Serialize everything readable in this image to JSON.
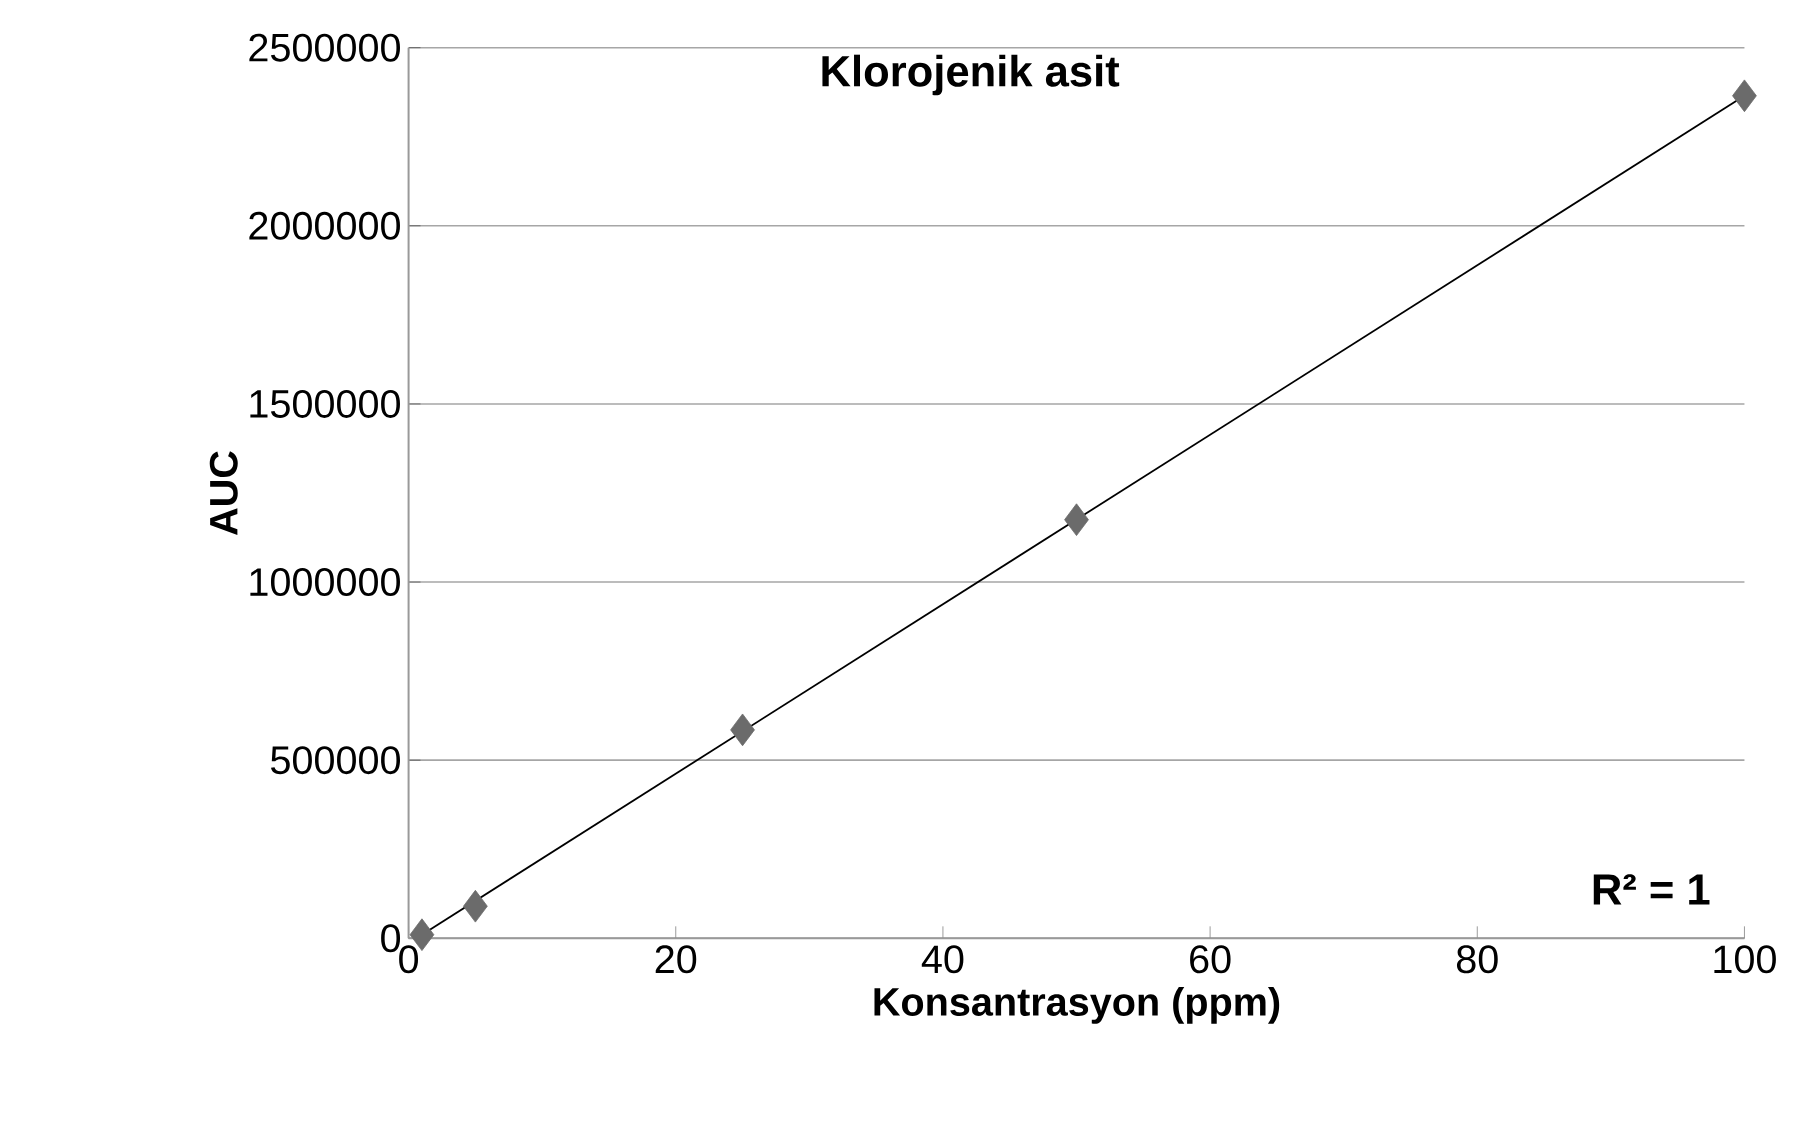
{
  "chart_data": {
    "type": "scatter",
    "title": "Klorojenik asit",
    "xlabel": "Konsantrasyon (ppm)",
    "ylabel": "AUC",
    "annotations": [
      "R² = 1"
    ],
    "x": [
      1,
      5,
      25,
      50,
      100
    ],
    "series": [
      {
        "color": "#6b6b6b",
        "marker": "diamond",
        "values": [
          10000,
          90000,
          585000,
          1175000,
          2365000
        ]
      },
      {
        "type": "line",
        "x": [
          1,
          100
        ],
        "color": "#000000",
        "marker": "none",
        "line_style": "solid",
        "values": [
          10000,
          2365000
        ]
      }
    ],
    "xlim": [
      0,
      100
    ],
    "ylim": [
      0,
      2500000
    ],
    "xticks": [
      0,
      20,
      40,
      60,
      80,
      100
    ],
    "yticks": [
      0,
      500000,
      1000000,
      1500000,
      2000000,
      2500000
    ],
    "grid": "y"
  }
}
